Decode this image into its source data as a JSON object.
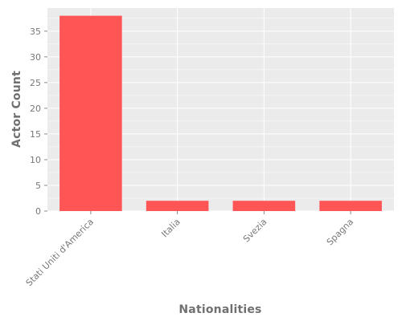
{
  "chart_data": {
    "type": "bar",
    "title": "",
    "xlabel": "Nationalities",
    "ylabel": "Actor Count",
    "categories": [
      "Stati Uniti d'America",
      "Italia",
      "Svezia",
      "Spagna"
    ],
    "values": [
      38,
      2,
      2,
      2
    ],
    "ylim": [
      0,
      39.5
    ],
    "yticks": [
      0,
      5,
      10,
      15,
      20,
      25,
      30,
      35
    ],
    "grid": true,
    "legend": "none",
    "colors": {
      "bar": "#ff5555",
      "plot_background": "#ebebeb",
      "grid": "#ffffff",
      "text": "#777777"
    }
  }
}
